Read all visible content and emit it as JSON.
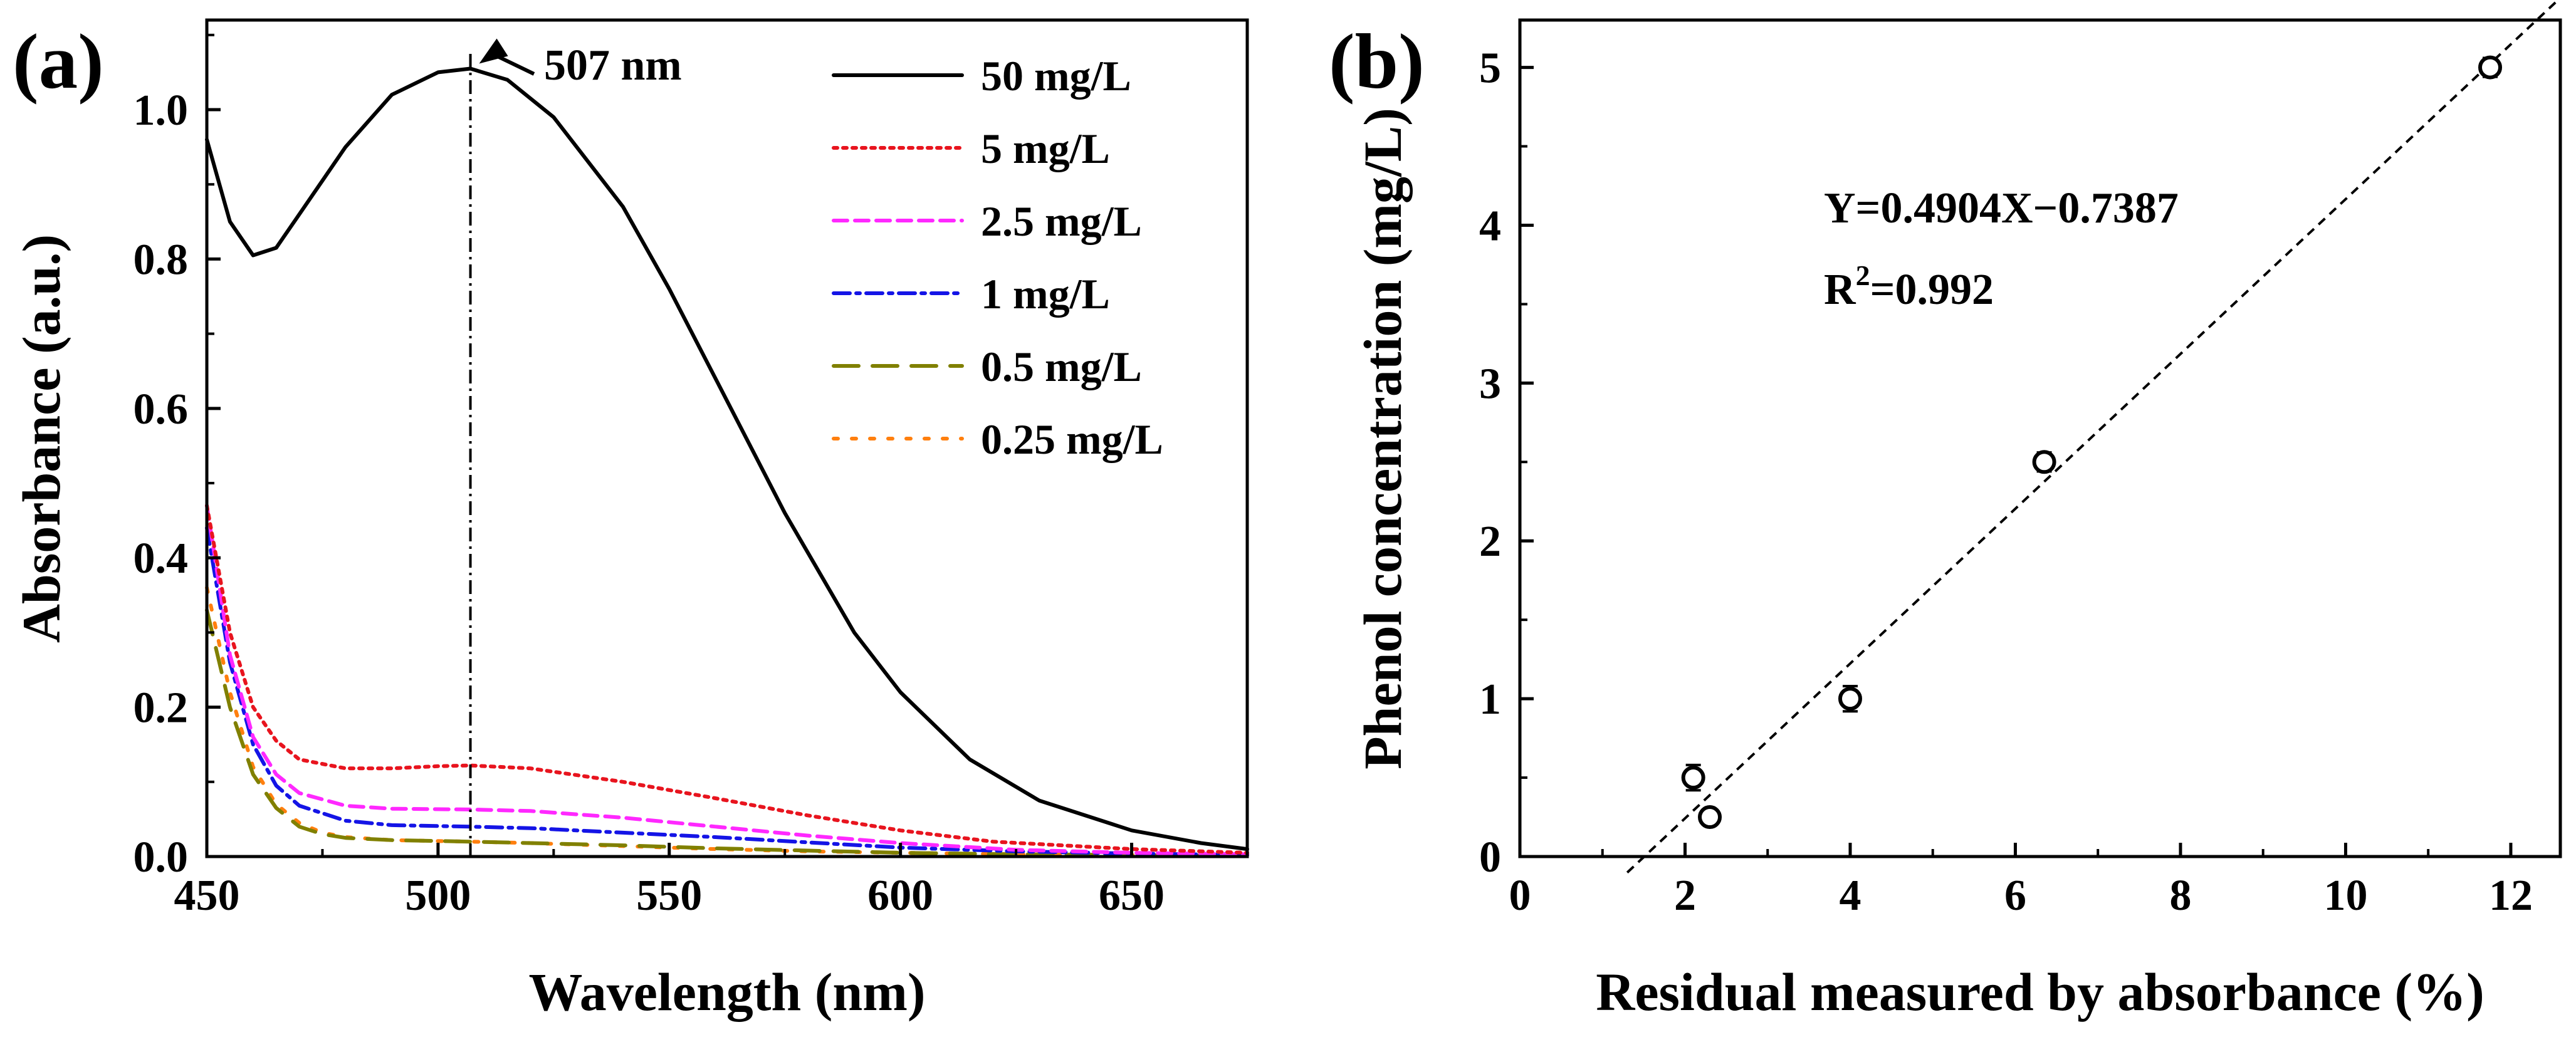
{
  "chart_data": [
    {
      "panel": "(a)",
      "type": "line",
      "xlabel": "Wavelength (nm)",
      "ylabel": "Absorbance (a.u.)",
      "xlim": [
        450,
        675
      ],
      "ylim": [
        0,
        1.12
      ],
      "xticks": [
        450,
        500,
        550,
        600,
        650
      ],
      "xtick_labels": [
        "450",
        "500",
        "550",
        "600",
        "650"
      ],
      "yticks": [
        0,
        0.2,
        0.4,
        0.6,
        0.8,
        1.0
      ],
      "ytick_labels": [
        "0.0",
        "0.2",
        "0.4",
        "0.6",
        "0.8",
        "1.0"
      ],
      "peak_marker": {
        "x": 507,
        "y": 1.055,
        "label": "507 nm"
      },
      "legend_position": "top-right",
      "series": [
        {
          "name": "50 mg/L",
          "color": "#000000",
          "dash": "solid",
          "x": [
            450,
            455,
            460,
            465,
            470,
            480,
            490,
            500,
            507,
            515,
            525,
            540,
            550,
            560,
            575,
            590,
            600,
            615,
            630,
            650,
            665,
            675
          ],
          "y": [
            0.96,
            0.85,
            0.805,
            0.815,
            0.86,
            0.95,
            1.02,
            1.05,
            1.055,
            1.04,
            0.99,
            0.87,
            0.76,
            0.64,
            0.46,
            0.3,
            0.22,
            0.13,
            0.075,
            0.035,
            0.018,
            0.01
          ]
        },
        {
          "name": "5 mg/L",
          "color": "#e8141e",
          "dash": "dotted",
          "x": [
            450,
            455,
            460,
            465,
            470,
            480,
            490,
            500,
            507,
            520,
            540,
            560,
            580,
            600,
            620,
            650,
            675
          ],
          "y": [
            0.47,
            0.3,
            0.2,
            0.155,
            0.13,
            0.118,
            0.118,
            0.121,
            0.122,
            0.118,
            0.1,
            0.078,
            0.055,
            0.035,
            0.02,
            0.01,
            0.005
          ]
        },
        {
          "name": "2.5 mg/L",
          "color": "#ff28ff",
          "dash": "dashed",
          "x": [
            450,
            455,
            460,
            465,
            470,
            480,
            490,
            507,
            520,
            540,
            560,
            580,
            600,
            625,
            650,
            675
          ],
          "y": [
            0.47,
            0.27,
            0.16,
            0.11,
            0.085,
            0.068,
            0.064,
            0.063,
            0.061,
            0.052,
            0.04,
            0.028,
            0.018,
            0.009,
            0.005,
            0.003
          ]
        },
        {
          "name": "1 mg/L",
          "color": "#1414e6",
          "dash": "dashdot",
          "x": [
            450,
            455,
            460,
            465,
            470,
            480,
            490,
            507,
            520,
            540,
            560,
            580,
            600,
            625,
            650,
            675
          ],
          "y": [
            0.44,
            0.26,
            0.15,
            0.095,
            0.068,
            0.048,
            0.042,
            0.04,
            0.038,
            0.032,
            0.026,
            0.019,
            0.012,
            0.007,
            0.004,
            0.002
          ]
        },
        {
          "name": "0.5 mg/L",
          "color": "#808000",
          "dash": "longdash",
          "x": [
            450,
            455,
            460,
            465,
            470,
            475,
            480,
            490,
            507,
            520,
            540,
            560,
            580,
            600,
            625,
            650,
            675
          ],
          "y": [
            0.33,
            0.2,
            0.11,
            0.065,
            0.04,
            0.03,
            0.025,
            0.022,
            0.02,
            0.018,
            0.015,
            0.011,
            0.008,
            0.005,
            0.003,
            0.002,
            0.001
          ]
        },
        {
          "name": "0.25 mg/L",
          "color": "#ff7f0e",
          "dash": "sparsedot",
          "x": [
            450,
            455,
            460,
            465,
            470,
            475,
            480,
            490,
            507,
            520,
            540,
            560,
            580,
            600,
            625,
            650,
            675
          ],
          "y": [
            0.36,
            0.22,
            0.12,
            0.07,
            0.045,
            0.032,
            0.026,
            0.022,
            0.02,
            0.018,
            0.014,
            0.01,
            0.007,
            0.005,
            0.003,
            0.002,
            0.001
          ]
        }
      ]
    },
    {
      "panel": "(b)",
      "type": "scatter",
      "xlabel": "Residual measured by absorbance (%)",
      "ylabel": "Phenol concentration (mg/L)",
      "xlim": [
        0,
        12.6
      ],
      "ylim": [
        0,
        5.3
      ],
      "xticks": [
        0,
        2,
        4,
        6,
        8,
        10,
        12
      ],
      "xtick_labels": [
        "0",
        "2",
        "4",
        "6",
        "8",
        "10",
        "12"
      ],
      "yticks": [
        0,
        1,
        2,
        3,
        4,
        5
      ],
      "ytick_labels": [
        "0",
        "1",
        "2",
        "3",
        "4",
        "5"
      ],
      "points": [
        {
          "x": 2.1,
          "y": 0.5,
          "err": 0.08
        },
        {
          "x": 2.3,
          "y": 0.25,
          "err": 0.05
        },
        {
          "x": 4.0,
          "y": 1.0,
          "err": 0.08
        },
        {
          "x": 6.35,
          "y": 2.5,
          "err": 0.06
        },
        {
          "x": 11.75,
          "y": 5.0,
          "err": 0.06
        }
      ],
      "fit": {
        "slope": 0.4904,
        "intercept": -0.7387,
        "x_range": [
          1.3,
          12.6
        ],
        "style": "dashed"
      },
      "equation": "Y=0.4904X−0.7387",
      "r2_prefix": "R",
      "r2_sup": "2",
      "r2_value": "=0.992"
    }
  ]
}
